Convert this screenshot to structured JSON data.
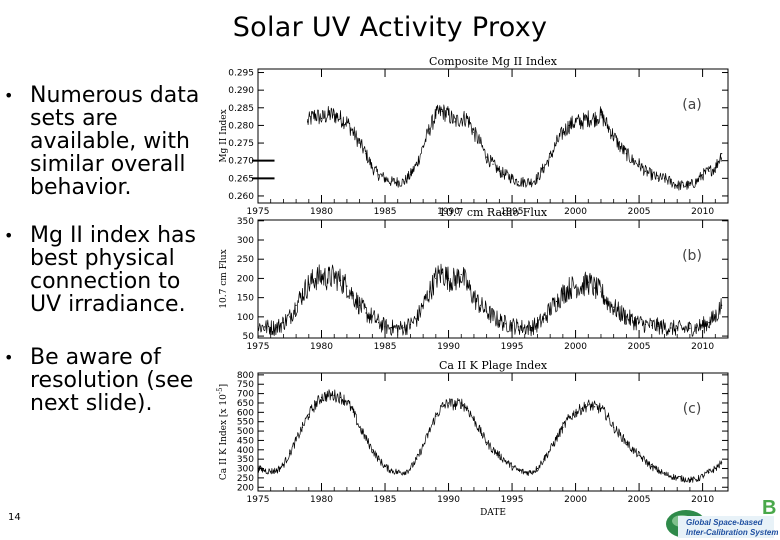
{
  "slide": {
    "title": "Solar UV Activity Proxy",
    "bullets": [
      "Numerous data sets are available, with similar overall behavior.",
      "Mg II index has best physical connection to UV irradiance.",
      "Be aware of resolution (see next slide)."
    ],
    "bullet_glyph": "•",
    "page_number": "14",
    "logo_text": [
      "Global Space-based",
      "Inter-Calibration System"
    ],
    "logo_letter": "B"
  },
  "chart_data": [
    {
      "type": "line",
      "title": "Composite Mg II Index",
      "ylabel": "Mg II Index",
      "panel_label": "(a)",
      "xlim": [
        1975,
        2012
      ],
      "ylim": [
        0.258,
        0.296
      ],
      "xticks": [
        1975,
        1980,
        1985,
        1990,
        1995,
        2000,
        2005,
        2010
      ],
      "yticks": [
        0.26,
        0.265,
        0.27,
        0.275,
        0.28,
        0.285,
        0.29,
        0.295
      ],
      "ytick_labels": [
        "0.260",
        "0.265",
        "0.270",
        "0.275",
        "0.280",
        "0.285",
        "0.290",
        "0.295"
      ],
      "series_start": 1978.9,
      "x": [
        1978.9,
        1979.5,
        1980,
        1980.5,
        1981,
        1981.5,
        1982,
        1982.5,
        1983,
        1983.5,
        1984,
        1984.5,
        1985,
        1985.5,
        1986,
        1986.5,
        1987,
        1987.5,
        1988,
        1988.5,
        1989,
        1989.5,
        1990,
        1990.5,
        1991,
        1991.5,
        1992,
        1992.5,
        1993,
        1993.5,
        1994,
        1994.5,
        1995,
        1995.5,
        1996,
        1996.5,
        1997,
        1997.5,
        1998,
        1998.5,
        1999,
        1999.5,
        2000,
        2000.5,
        2001,
        2001.5,
        2002,
        2002.5,
        2003,
        2003.5,
        2004,
        2004.5,
        2005,
        2005.5,
        2006,
        2006.5,
        2007,
        2007.5,
        2008,
        2008.5,
        2009,
        2009.5,
        2010,
        2010.5,
        2011,
        2011.5
      ],
      "y": [
        0.281,
        0.283,
        0.282,
        0.283,
        0.283,
        0.282,
        0.281,
        0.278,
        0.275,
        0.272,
        0.268,
        0.266,
        0.265,
        0.264,
        0.264,
        0.264,
        0.266,
        0.269,
        0.274,
        0.279,
        0.283,
        0.284,
        0.283,
        0.281,
        0.282,
        0.282,
        0.278,
        0.275,
        0.271,
        0.269,
        0.267,
        0.266,
        0.265,
        0.264,
        0.264,
        0.264,
        0.265,
        0.268,
        0.271,
        0.275,
        0.278,
        0.28,
        0.281,
        0.281,
        0.282,
        0.282,
        0.283,
        0.28,
        0.277,
        0.274,
        0.272,
        0.27,
        0.269,
        0.267,
        0.266,
        0.265,
        0.265,
        0.264,
        0.263,
        0.263,
        0.263,
        0.264,
        0.266,
        0.267,
        0.268,
        0.272
      ],
      "noise": 0.0032
    },
    {
      "type": "line",
      "title": "10.7 cm Radio Flux",
      "ylabel": "10.7 cm Flux",
      "panel_label": "(b)",
      "xlim": [
        1975,
        2012
      ],
      "ylim": [
        45,
        352
      ],
      "xticks": [
        1975,
        1980,
        1985,
        1990,
        1995,
        2000,
        2005,
        2010
      ],
      "yticks": [
        50,
        100,
        150,
        200,
        250,
        300,
        350
      ],
      "ytick_labels": [
        "50",
        "100",
        "150",
        "200",
        "250",
        "300",
        "350"
      ],
      "series_start": 1975,
      "x": [
        1975,
        1975.5,
        1976,
        1976.5,
        1977,
        1977.5,
        1978,
        1978.5,
        1979,
        1979.5,
        1980,
        1980.5,
        1981,
        1981.5,
        1982,
        1982.5,
        1983,
        1983.5,
        1984,
        1984.5,
        1985,
        1985.5,
        1986,
        1986.5,
        1987,
        1987.5,
        1988,
        1988.5,
        1989,
        1989.5,
        1990,
        1990.5,
        1991,
        1991.5,
        1992,
        1992.5,
        1993,
        1993.5,
        1994,
        1994.5,
        1995,
        1995.5,
        1996,
        1996.5,
        1997,
        1997.5,
        1998,
        1998.5,
        1999,
        1999.5,
        2000,
        2000.5,
        2001,
        2001.5,
        2002,
        2002.5,
        2003,
        2003.5,
        2004,
        2004.5,
        2005,
        2005.5,
        2006,
        2006.5,
        2007,
        2007.5,
        2008,
        2008.5,
        2009,
        2009.5,
        2010,
        2010.5,
        2011,
        2011.5
      ],
      "y": [
        75,
        74,
        72,
        73,
        85,
        100,
        130,
        160,
        185,
        200,
        205,
        200,
        205,
        195,
        180,
        155,
        130,
        110,
        100,
        85,
        75,
        72,
        70,
        72,
        80,
        95,
        130,
        165,
        200,
        215,
        200,
        195,
        210,
        180,
        150,
        130,
        115,
        100,
        90,
        82,
        78,
        74,
        72,
        72,
        80,
        95,
        120,
        140,
        160,
        175,
        180,
        180,
        190,
        175,
        165,
        140,
        125,
        110,
        100,
        90,
        85,
        80,
        78,
        76,
        73,
        71,
        70,
        69,
        70,
        72,
        78,
        85,
        100,
        130
      ],
      "noise": 48
    },
    {
      "type": "line",
      "title": "Ca II K Plage Index",
      "ylabel": "Ca II K Index [x 10^-5]",
      "panel_label": "(c)",
      "xlabel": "DATE",
      "xlim": [
        1975,
        2012
      ],
      "ylim": [
        180,
        810
      ],
      "xticks": [
        1975,
        1980,
        1985,
        1990,
        1995,
        2000,
        2005,
        2010
      ],
      "yticks": [
        200,
        250,
        300,
        350,
        400,
        450,
        500,
        550,
        600,
        650,
        700,
        750,
        800
      ],
      "ytick_labels": [
        "200",
        "250",
        "300",
        "350",
        "400",
        "450",
        "500",
        "550",
        "600",
        "650",
        "700",
        "750",
        "800"
      ],
      "series_start": 1975,
      "x": [
        1975,
        1975.5,
        1976,
        1976.5,
        1977,
        1977.5,
        1978,
        1978.5,
        1979,
        1979.5,
        1980,
        1980.5,
        1981,
        1981.5,
        1982,
        1982.5,
        1983,
        1983.5,
        1984,
        1984.5,
        1985,
        1985.5,
        1986,
        1986.5,
        1987,
        1987.5,
        1988,
        1988.5,
        1989,
        1989.5,
        1990,
        1990.5,
        1991,
        1991.5,
        1992,
        1992.5,
        1993,
        1993.5,
        1994,
        1994.5,
        1995,
        1995.5,
        1996,
        1996.5,
        1997,
        1997.5,
        1998,
        1998.5,
        1999,
        1999.5,
        2000,
        2000.5,
        2001,
        2001.5,
        2002,
        2002.5,
        2003,
        2003.5,
        2004,
        2004.5,
        2005,
        2005.5,
        2006,
        2006.5,
        2007,
        2007.5,
        2008,
        2008.5,
        2009,
        2009.5,
        2010,
        2010.5,
        2011,
        2011.5
      ],
      "y": [
        300,
        290,
        285,
        290,
        320,
        380,
        450,
        520,
        590,
        640,
        680,
        690,
        690,
        680,
        660,
        600,
        520,
        460,
        400,
        350,
        310,
        290,
        280,
        280,
        300,
        350,
        420,
        500,
        580,
        630,
        650,
        640,
        650,
        620,
        560,
        500,
        440,
        400,
        370,
        340,
        310,
        290,
        280,
        280,
        300,
        350,
        400,
        460,
        520,
        570,
        600,
        620,
        640,
        630,
        620,
        580,
        520,
        480,
        440,
        400,
        370,
        340,
        310,
        290,
        270,
        260,
        250,
        245,
        240,
        240,
        260,
        280,
        300,
        330
      ],
      "noise": 38
    }
  ]
}
